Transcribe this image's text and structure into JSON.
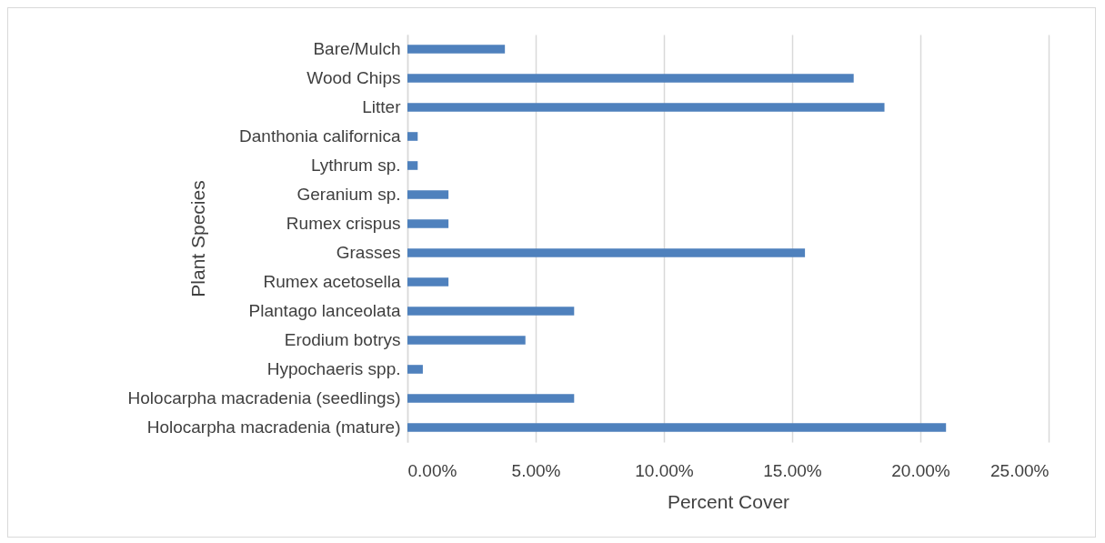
{
  "chart_data": {
    "type": "bar",
    "orientation": "horizontal",
    "categories": [
      "Bare/Mulch",
      "Wood Chips",
      "Litter",
      "Danthonia californica",
      "Lythrum sp.",
      "Geranium sp.",
      "Rumex crispus",
      "Grasses",
      "Rumex acetosella",
      "Plantago lanceolata",
      "Erodium botrys",
      "Hypochaeris spp.",
      "Holocarpha macradenia (seedlings)",
      "Holocarpha macradenia (mature)"
    ],
    "values": [
      3.8,
      17.4,
      18.6,
      0.4,
      0.4,
      1.6,
      1.6,
      15.5,
      1.6,
      6.5,
      4.6,
      0.6,
      6.5,
      21.0
    ],
    "color": "#4f81bd",
    "xlim": [
      0,
      25
    ],
    "xticks": [
      {
        "value": 0,
        "label": "0.00%"
      },
      {
        "value": 5,
        "label": "5.00%"
      },
      {
        "value": 10,
        "label": "10.00%"
      },
      {
        "value": 15,
        "label": "15.00%"
      },
      {
        "value": 20,
        "label": "20.00%"
      },
      {
        "value": 25,
        "label": "25.00%"
      }
    ],
    "xlabel": "Percent Cover",
    "ylabel": "Plant Species",
    "grid": "x"
  }
}
